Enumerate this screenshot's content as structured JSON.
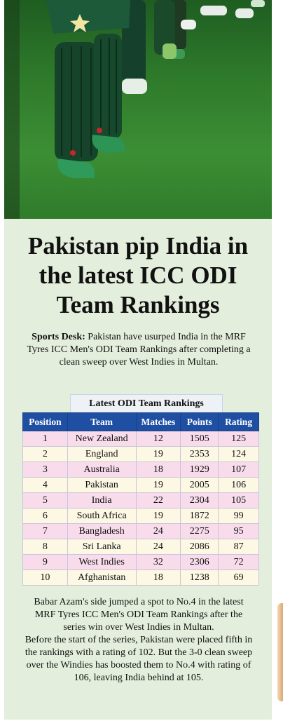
{
  "headline": "Pakistan pip India in the latest ICC ODI Team Rankings",
  "lead": {
    "desk": "Sports Desk:",
    "text": " Pakistan have usurped India in the MRF Tyres ICC Men's ODI Team Rankings after completing a clean sweep over West Indies in Multan."
  },
  "table": {
    "title": "Latest ODI Team Rankings",
    "headers": [
      "Position",
      "Team",
      "Matches",
      "Points",
      "Rating"
    ],
    "rows": [
      [
        "1",
        "New Zealand",
        "12",
        "1505",
        "125"
      ],
      [
        "2",
        "England",
        "19",
        "2353",
        "124"
      ],
      [
        "3",
        "Australia",
        "18",
        "1929",
        "107"
      ],
      [
        "4",
        "Pakistan",
        "19",
        "2005",
        "106"
      ],
      [
        "5",
        "India",
        "22",
        "2304",
        "105"
      ],
      [
        "6",
        "South Africa",
        "19",
        "1872",
        "99"
      ],
      [
        "7",
        "Bangladesh",
        "24",
        "2275",
        "95"
      ],
      [
        "8",
        "Sri Lanka",
        "24",
        "2086",
        "87"
      ],
      [
        "9",
        "West Indies",
        "32",
        "2306",
        "72"
      ],
      [
        "10",
        "Afghanistan",
        "18",
        "1238",
        "69"
      ]
    ]
  },
  "body": {
    "p1": "Babar Azam's side jumped a spot to No.4 in the latest MRF Tyres ICC Men's ODI Team Rankings after the series win over West Indies in Multan.",
    "p2": "Before the start of the series, Pakistan were placed fifth in the rankings with a rating of 102. But the 3-0 clean sweep over the Windies has boosted them to No.4 with rating of 106, leaving India behind at 105."
  },
  "colors": {
    "panel_bg": "#e4eedc",
    "header_bg": "#1f4fa3",
    "row_odd": "#f8dceb",
    "row_even": "#fdf8e4"
  }
}
